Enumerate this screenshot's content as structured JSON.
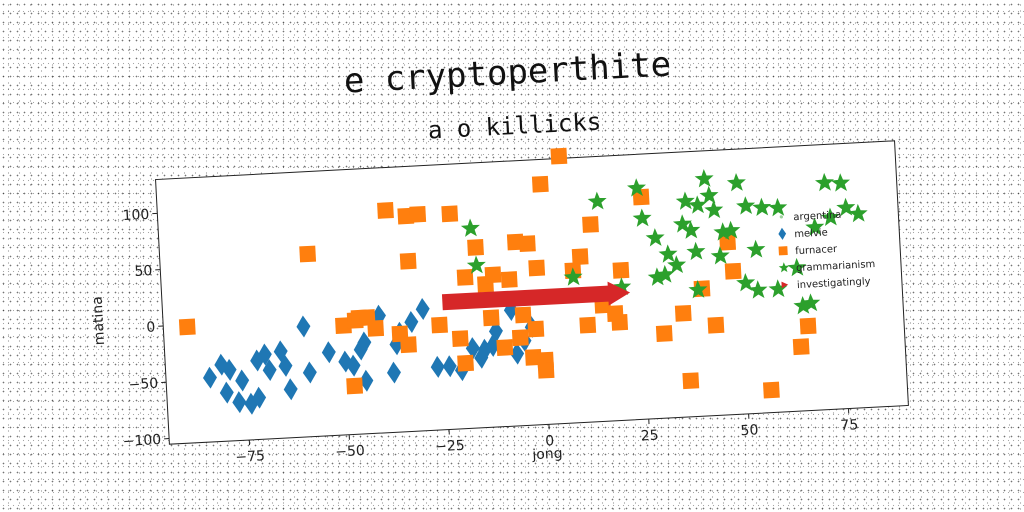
{
  "chart_data": {
    "type": "scatter",
    "title": "e cryptoperthite",
    "subtitle": "a o killicks",
    "xlabel": "jong",
    "ylabel": "matina",
    "xlim": [
      -95,
      90
    ],
    "ylim": [
      -105,
      130
    ],
    "xticks": [
      -75,
      -50,
      -25,
      0,
      25,
      50,
      75
    ],
    "xtick_labels": [
      "−75",
      "−50",
      "−25",
      "0",
      "25",
      "50",
      "75"
    ],
    "yticks": [
      -100,
      -50,
      0,
      50,
      100
    ],
    "ytick_labels": [
      "−100",
      "−50",
      "0",
      "50",
      "100"
    ],
    "grid": false,
    "legend_position": "right",
    "series": [
      {
        "name": "argentina",
        "marker": "dot",
        "color": "#9ed29e",
        "points": []
      },
      {
        "name": "melvie",
        "marker": "diamond",
        "color": "#1f77b4",
        "points": [
          [
            -84,
            -48
          ],
          [
            -81,
            -37
          ],
          [
            -79,
            -42
          ],
          [
            -80,
            -62
          ],
          [
            -77,
            -71
          ],
          [
            -76,
            -52
          ],
          [
            -74,
            -73
          ],
          [
            -72,
            -35
          ],
          [
            -72,
            -68
          ],
          [
            -70,
            -30
          ],
          [
            -69,
            -44
          ],
          [
            -66,
            -28
          ],
          [
            -65,
            -41
          ],
          [
            -64,
            -62
          ],
          [
            -60,
            -7
          ],
          [
            -59,
            -48
          ],
          [
            -54,
            -31
          ],
          [
            -50,
            -40
          ],
          [
            -48,
            -44
          ],
          [
            -46,
            -30
          ],
          [
            -45,
            -58
          ],
          [
            -45,
            -24
          ],
          [
            -41,
            -1
          ],
          [
            -38,
            -52
          ],
          [
            -37,
            -27
          ],
          [
            -36,
            -17
          ],
          [
            -33,
            -8
          ],
          [
            -30,
            3
          ],
          [
            -27,
            -49
          ],
          [
            -24,
            -49
          ],
          [
            -21,
            -53
          ],
          [
            -18,
            -34
          ],
          [
            -16,
            -43
          ],
          [
            -15,
            -36
          ],
          [
            -13,
            -33
          ],
          [
            -12,
            -20
          ],
          [
            -8,
            -2
          ],
          [
            -7,
            -41
          ],
          [
            -5,
            -30
          ],
          [
            -3,
            -18
          ]
        ]
      },
      {
        "name": "furnacer",
        "marker": "square",
        "color": "#ff7f0e",
        "points": [
          [
            -89,
            -2
          ],
          [
            -58,
            57
          ],
          [
            -50,
            -8
          ],
          [
            -48,
            -62
          ],
          [
            -47,
            -4
          ],
          [
            -46,
            -2
          ],
          [
            -44,
            -2
          ],
          [
            -42,
            -12
          ],
          [
            -38,
            92
          ],
          [
            -36,
            -18
          ],
          [
            -34,
            -28
          ],
          [
            -33,
            46
          ],
          [
            -33,
            86
          ],
          [
            -30,
            87
          ],
          [
            -26,
            -12
          ],
          [
            -22,
            86
          ],
          [
            -21,
            -25
          ],
          [
            -20,
            -47
          ],
          [
            -19,
            29
          ],
          [
            -16,
            55
          ],
          [
            -14,
            22
          ],
          [
            -13,
            -8
          ],
          [
            -12,
            30
          ],
          [
            -10,
            -35
          ],
          [
            -8,
            25
          ],
          [
            -6,
            -27
          ],
          [
            -6,
            58
          ],
          [
            -5,
            -7
          ],
          [
            -3,
            56
          ],
          [
            -3,
            -45
          ],
          [
            -2,
            -20
          ],
          [
            -1,
            34
          ],
          [
            0,
            -48
          ],
          [
            0,
            -57
          ],
          [
            1,
            108
          ],
          [
            6,
            132
          ],
          [
            8,
            30
          ],
          [
            10,
            42
          ],
          [
            11,
            -19
          ],
          [
            13,
            70
          ],
          [
            15,
            -2
          ],
          [
            18,
            -10
          ],
          [
            19,
            -18
          ],
          [
            20,
            28
          ],
          [
            26,
            92
          ],
          [
            30,
            -30
          ],
          [
            35,
            -13
          ],
          [
            36,
            -73
          ],
          [
            40,
            8
          ],
          [
            43,
            -25
          ],
          [
            47,
            48
          ],
          [
            48,
            22
          ],
          [
            56,
            -85
          ],
          [
            64,
            -48
          ],
          [
            66,
            -30
          ]
        ]
      },
      {
        "name": "grammarianism",
        "marker": "star",
        "color": "#2ca02c",
        "points": [
          [
            -17,
            72
          ],
          [
            -16,
            39
          ],
          [
            8,
            24
          ],
          [
            15,
            90
          ],
          [
            20,
            13
          ],
          [
            25,
            100
          ],
          [
            26,
            73
          ],
          [
            29,
            20
          ],
          [
            29,
            55
          ],
          [
            31,
            22
          ],
          [
            32,
            40
          ],
          [
            34,
            30
          ],
          [
            36,
            66
          ],
          [
            37,
            86
          ],
          [
            38,
            60
          ],
          [
            39,
            7
          ],
          [
            39,
            41
          ],
          [
            40,
            82
          ],
          [
            42,
            105
          ],
          [
            43,
            90
          ],
          [
            44,
            77
          ],
          [
            45,
            36
          ],
          [
            46,
            57
          ],
          [
            48,
            58
          ],
          [
            50,
            100
          ],
          [
            51,
            11
          ],
          [
            52,
            79
          ],
          [
            54,
            40
          ],
          [
            54,
            4
          ],
          [
            56,
            77
          ],
          [
            59,
            4
          ],
          [
            60,
            76
          ],
          [
            64,
            22
          ],
          [
            65,
            -12
          ],
          [
            67,
            -10
          ],
          [
            69,
            57
          ],
          [
            72,
            96
          ],
          [
            73,
            65
          ],
          [
            76,
            95
          ],
          [
            77,
            73
          ],
          [
            80,
            67
          ]
        ]
      },
      {
        "name": "investigatingly",
        "marker": "triangle-right",
        "color": "#d62728",
        "points": []
      }
    ],
    "arrow": {
      "from": [
        -25,
        8
      ],
      "to": [
        22,
        8
      ],
      "color": "#d62728",
      "label": "investigatingly"
    }
  }
}
